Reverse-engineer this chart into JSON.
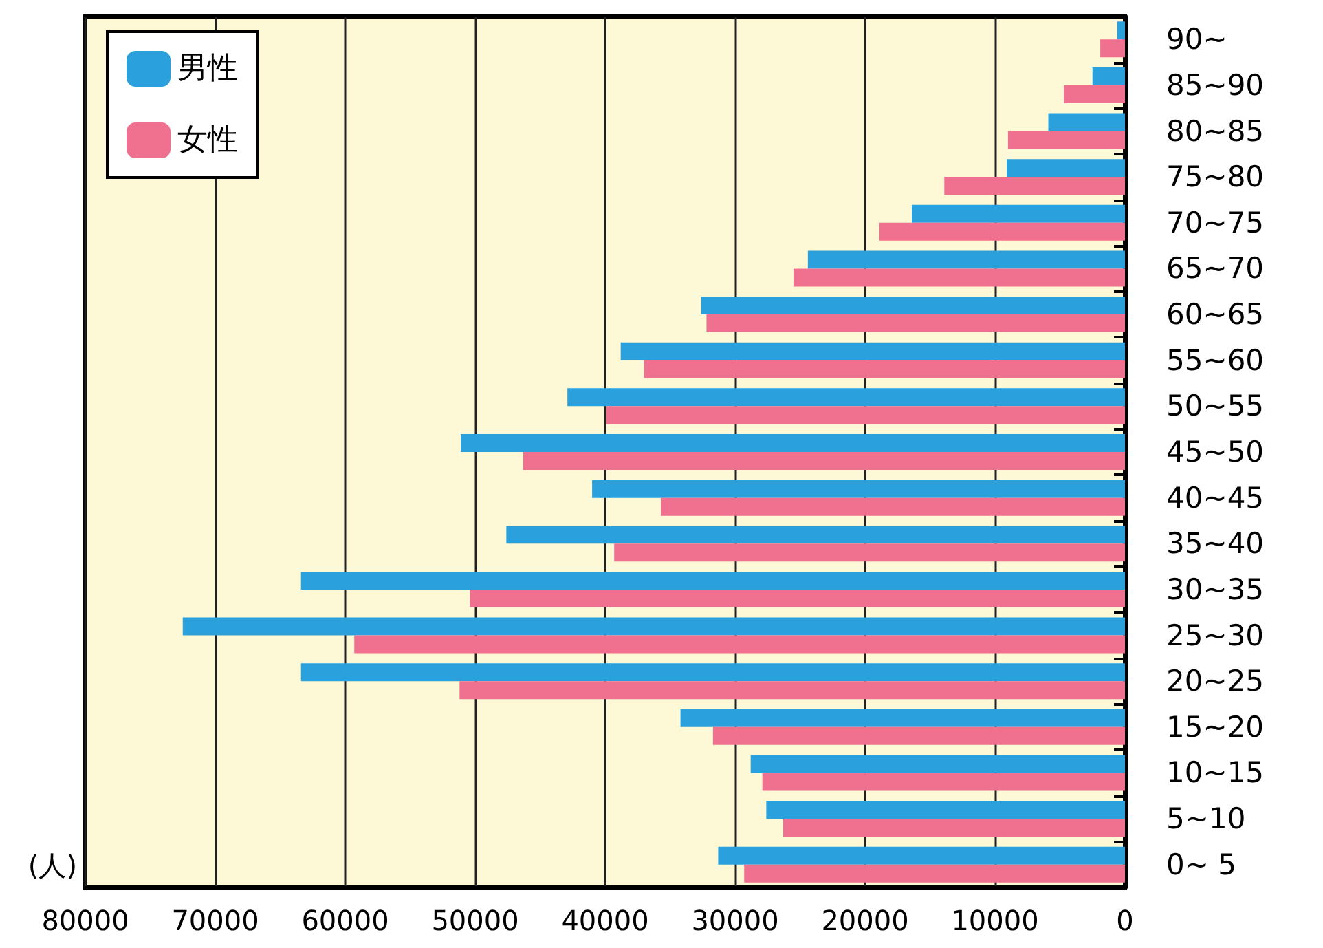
{
  "chart_data": {
    "type": "bar",
    "orientation": "horizontal",
    "xlabel": "(人)",
    "categories": [
      "90~",
      "85~90",
      "80~85",
      "75~80",
      "70~75",
      "65~70",
      "60~65",
      "55~60",
      "50~55",
      "45~50",
      "40~45",
      "35~40",
      "30~35",
      "25~30",
      "20~25",
      "15~20",
      "10~15",
      "5~10",
      "0~ 5"
    ],
    "series": [
      {
        "name": "男性",
        "color": "#2aa1dc",
        "values": [
          600,
          2500,
          5900,
          9100,
          16400,
          24400,
          32600,
          38800,
          42900,
          51100,
          41000,
          47600,
          63400,
          72500,
          63400,
          34200,
          28800,
          27600,
          31300
        ]
      },
      {
        "name": "女性",
        "color": "#f07090",
        "values": [
          1900,
          4700,
          9000,
          13900,
          18900,
          25500,
          32200,
          37000,
          39900,
          46300,
          35700,
          39300,
          50400,
          59300,
          51200,
          31700,
          27900,
          26300,
          29300
        ]
      }
    ],
    "xlim": [
      80000,
      0
    ],
    "xticks": [
      80000,
      70000,
      60000,
      50000,
      40000,
      30000,
      20000,
      10000,
      0
    ],
    "grid": "x",
    "legend": "top left"
  }
}
